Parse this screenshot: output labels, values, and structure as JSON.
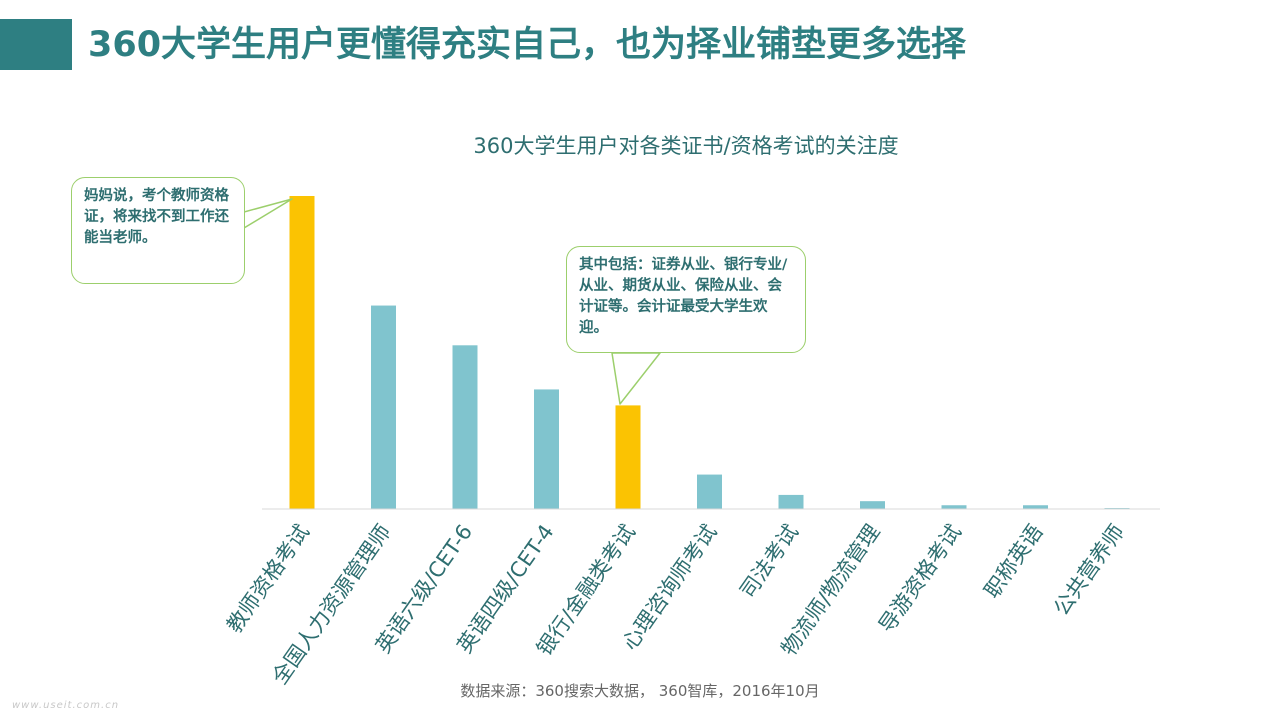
{
  "slide": {
    "title": "360大学生用户更懂得充实自己，也为择业铺垫更多选择",
    "accent_color": "#2e7f82"
  },
  "chart_data": {
    "type": "bar",
    "title": "360大学生用户对各类证书/资格考试的关注度",
    "categories": [
      "教师资格考试",
      "全国人力资源管理师",
      "英语六级/CET-6",
      "英语四级/CET-4",
      "银行/金融类考试",
      "心理咨询师考试",
      "司法考试",
      "物流师/物流管理",
      "导游资格考试",
      "职称英语",
      "公共营养师"
    ],
    "values": [
      100,
      65,
      52.3,
      38.2,
      33.1,
      11,
      4.5,
      2.5,
      1.2,
      1.2,
      0.3
    ],
    "highlighted": [
      0,
      4
    ],
    "colors": {
      "normal": "#80c4ce",
      "highlight": "#fbc302"
    },
    "ylim": [
      0,
      100
    ],
    "grid": false,
    "y_axis_shown": false
  },
  "callouts": [
    {
      "text": "妈妈说，考个教师资格证，将来找不到工作还能当老师。",
      "target_category": 0
    },
    {
      "text": "其中包括：证券从业、银行专业/从业、期货从业、保险从业、会计证等。会计证最受大学生欢迎。",
      "target_category": 4
    }
  ],
  "source": "数据来源：360搜索大数据， 360智库，2016年10月",
  "watermark": "www.useit.com.cn"
}
